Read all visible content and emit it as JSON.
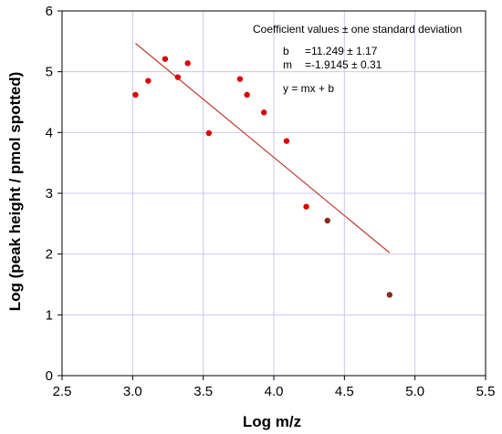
{
  "chart_data": {
    "type": "scatter",
    "title": "",
    "xlabel": "Log m/z",
    "ylabel": "Log (peak height / pmol spotted)",
    "xlim": [
      2.5,
      5.5
    ],
    "ylim": [
      0,
      6
    ],
    "x_ticks": [
      2.5,
      3.0,
      3.5,
      4.0,
      4.5,
      5.0,
      5.5
    ],
    "x_tick_labels": [
      "2.5",
      "3.0",
      "3.5",
      "4.0",
      "4.5",
      "5.0",
      "5.5"
    ],
    "y_ticks": [
      0,
      1,
      2,
      3,
      4,
      5,
      6
    ],
    "y_tick_labels": [
      "0",
      "1",
      "2",
      "3",
      "4",
      "5",
      "6"
    ],
    "grid": true,
    "colors": {
      "points": "#dd0000",
      "points_dark": "#8b2a1a",
      "fit_line": "#c0392b",
      "grid": "#c8c8f0"
    },
    "points": [
      {
        "x": 3.02,
        "y": 4.62
      },
      {
        "x": 3.11,
        "y": 4.85
      },
      {
        "x": 3.23,
        "y": 5.21
      },
      {
        "x": 3.32,
        "y": 4.91
      },
      {
        "x": 3.39,
        "y": 5.14
      },
      {
        "x": 3.54,
        "y": 3.99
      },
      {
        "x": 3.76,
        "y": 4.88
      },
      {
        "x": 3.81,
        "y": 4.62
      },
      {
        "x": 3.93,
        "y": 4.33
      },
      {
        "x": 4.09,
        "y": 3.86
      },
      {
        "x": 4.23,
        "y": 2.78
      },
      {
        "x": 4.38,
        "y": 2.55
      },
      {
        "x": 4.82,
        "y": 1.33
      }
    ],
    "fit": {
      "slope": -1.9145,
      "intercept": 11.249,
      "x_start": 3.02,
      "x_end": 4.82
    },
    "annotations": {
      "heading": "Coefficient values ± one standard deviation",
      "b_label": "b",
      "b_value": "=11.249 ± 1.17",
      "m_label": "m",
      "m_value": "=-1.9145 ± 0.31",
      "equation": "y = mx + b"
    }
  }
}
